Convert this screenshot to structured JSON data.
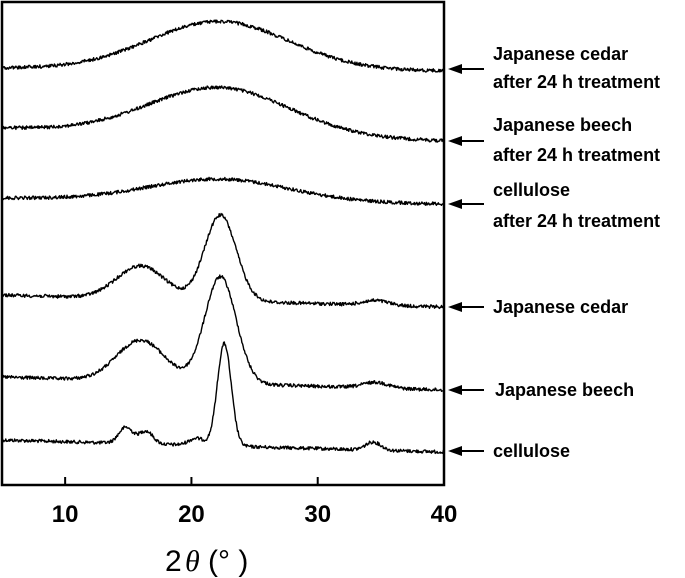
{
  "chart_data": {
    "type": "line",
    "title": "",
    "xlabel": "2θ (°)",
    "xlabel_parts": {
      "prefix": "2",
      "symbol": "θ",
      "unit": "(° )"
    },
    "ylabel": "",
    "xlim": [
      5,
      40
    ],
    "x_ticks": [
      10,
      20,
      30,
      40
    ],
    "x_tick_labels": [
      "10",
      "20",
      "30",
      "40"
    ],
    "grid": false,
    "legend": "right-side labels with arrows",
    "series": [
      {
        "name": "cellulose",
        "label_lines": [
          "cellulose"
        ],
        "kind": "crystalline_cellulose"
      },
      {
        "name": "Japanese beech",
        "label_lines": [
          "Japanese beech"
        ],
        "kind": "wood"
      },
      {
        "name": "Japanese cedar",
        "label_lines": [
          "Japanese cedar"
        ],
        "kind": "wood"
      },
      {
        "name": "cellulose after 24 h treatment",
        "label_lines": [
          "cellulose",
          "after 24 h treatment"
        ],
        "kind": "amorphous"
      },
      {
        "name": "Japanese beech after 24 h treatment",
        "label_lines": [
          "Japanese beech",
          "after 24 h treatment"
        ],
        "kind": "amorphous"
      },
      {
        "name": "Japanese cedar after 24 h treatment",
        "label_lines": [
          "Japanese cedar",
          "after 24 h treatment"
        ],
        "kind": "amorphous"
      }
    ],
    "peaks": {
      "crystalline_cellulose": [
        {
          "center": 14.8,
          "height": 0.5,
          "width": 0.55
        },
        {
          "center": 16.4,
          "height": 0.4,
          "width": 0.55
        },
        {
          "center": 20.4,
          "height": 0.22,
          "width": 0.6
        },
        {
          "center": 22.6,
          "height": 3.2,
          "width": 0.55
        },
        {
          "center": 34.4,
          "height": 0.25,
          "width": 0.6
        }
      ],
      "wood": [
        {
          "center": 16.0,
          "height": 1.0,
          "width": 1.9
        },
        {
          "center": 22.3,
          "height": 2.6,
          "width": 1.25
        },
        {
          "center": 34.6,
          "height": 0.14,
          "width": 1.0
        }
      ],
      "amorphous": [
        {
          "center": 22.2,
          "height": 1.0,
          "width": 5.5
        }
      ]
    }
  }
}
